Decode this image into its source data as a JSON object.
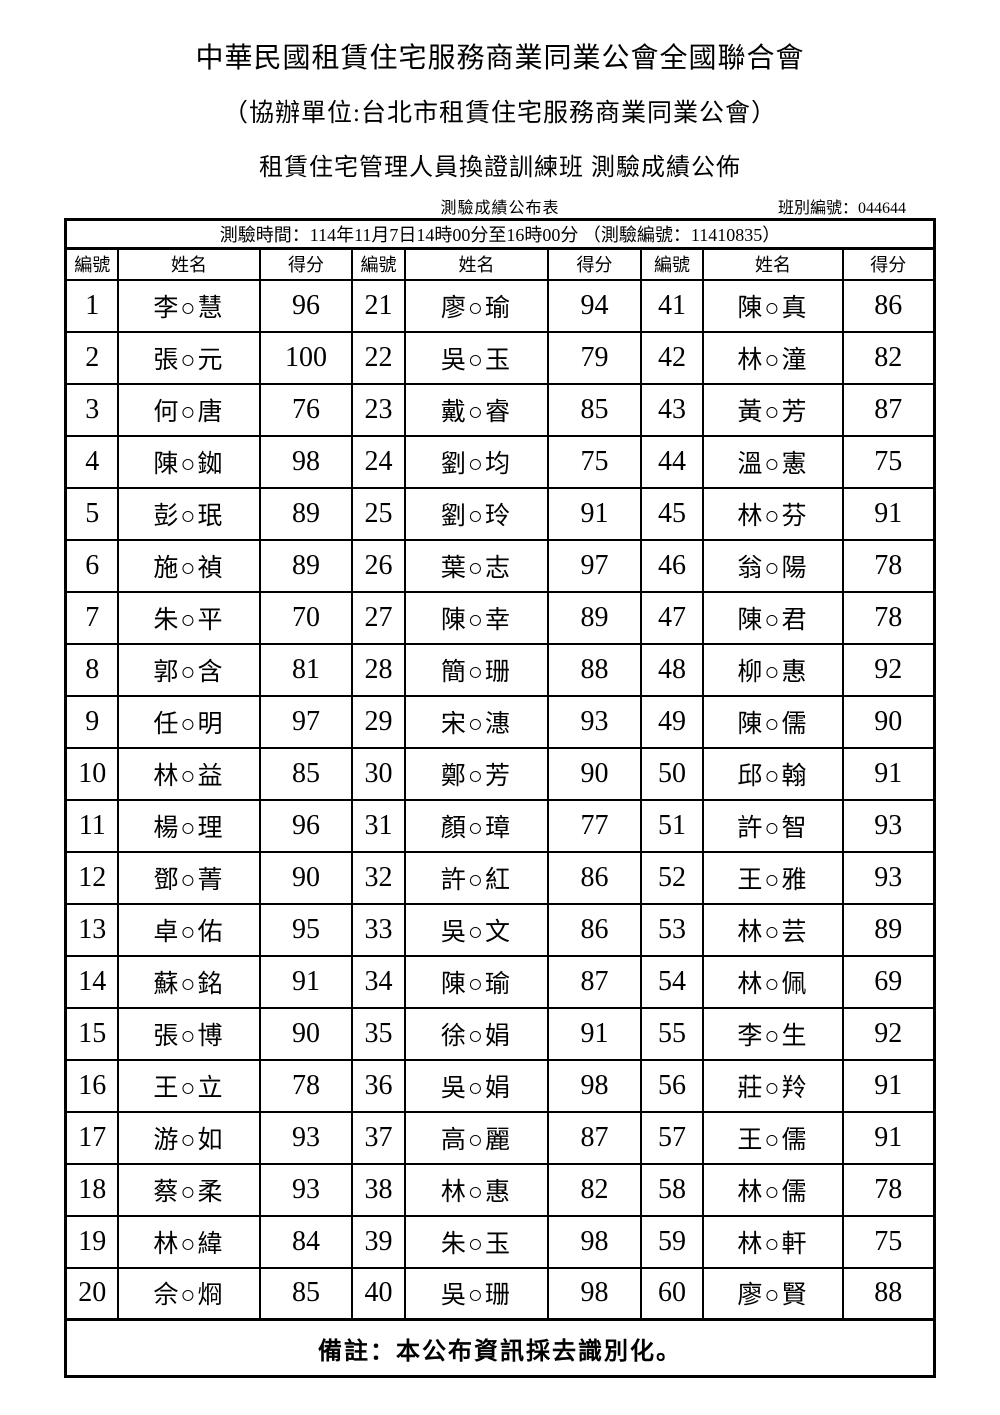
{
  "colors": {
    "background": "#ffffff",
    "text": "#000000",
    "border": "#000000"
  },
  "header": {
    "title1": "中華民國租賃住宅服務商業同業公會全國聯合會",
    "title2": "（協辦單位:台北市租賃住宅服務商業同業公會）",
    "title3": "租賃住宅管理人員換證訓練班 測驗成績公佈",
    "table_caption": "測驗成績公布表",
    "class_number": "班別編號：044644"
  },
  "table": {
    "time_row": "測驗時間：114年11月7日14時00分至16時00分 （測驗編號：11410835）",
    "column_headers": [
      "編號",
      "姓名",
      "得分"
    ],
    "entries": [
      {
        "no": "1",
        "name": "李○慧",
        "score": "96"
      },
      {
        "no": "2",
        "name": "張○元",
        "score": "100"
      },
      {
        "no": "3",
        "name": "何○唐",
        "score": "76"
      },
      {
        "no": "4",
        "name": "陳○銣",
        "score": "98"
      },
      {
        "no": "5",
        "name": "彭○珉",
        "score": "89"
      },
      {
        "no": "6",
        "name": "施○禎",
        "score": "89"
      },
      {
        "no": "7",
        "name": "朱○平",
        "score": "70"
      },
      {
        "no": "8",
        "name": "郭○含",
        "score": "81"
      },
      {
        "no": "9",
        "name": "任○明",
        "score": "97"
      },
      {
        "no": "10",
        "name": "林○益",
        "score": "85"
      },
      {
        "no": "11",
        "name": "楊○理",
        "score": "96"
      },
      {
        "no": "12",
        "name": "鄧○菁",
        "score": "90"
      },
      {
        "no": "13",
        "name": "卓○佑",
        "score": "95"
      },
      {
        "no": "14",
        "name": "蘇○銘",
        "score": "91"
      },
      {
        "no": "15",
        "name": "張○博",
        "score": "90"
      },
      {
        "no": "16",
        "name": "王○立",
        "score": "78"
      },
      {
        "no": "17",
        "name": "游○如",
        "score": "93"
      },
      {
        "no": "18",
        "name": "蔡○柔",
        "score": "93"
      },
      {
        "no": "19",
        "name": "林○緯",
        "score": "84"
      },
      {
        "no": "20",
        "name": "佘○烱",
        "score": "85"
      },
      {
        "no": "21",
        "name": "廖○瑜",
        "score": "94"
      },
      {
        "no": "22",
        "name": "吳○玉",
        "score": "79"
      },
      {
        "no": "23",
        "name": "戴○睿",
        "score": "85"
      },
      {
        "no": "24",
        "name": "劉○均",
        "score": "75"
      },
      {
        "no": "25",
        "name": "劉○玲",
        "score": "91"
      },
      {
        "no": "26",
        "name": "葉○志",
        "score": "97"
      },
      {
        "no": "27",
        "name": "陳○幸",
        "score": "89"
      },
      {
        "no": "28",
        "name": "簡○珊",
        "score": "88"
      },
      {
        "no": "29",
        "name": "宋○潓",
        "score": "93"
      },
      {
        "no": "30",
        "name": "鄭○芳",
        "score": "90"
      },
      {
        "no": "31",
        "name": "顏○璋",
        "score": "77"
      },
      {
        "no": "32",
        "name": "許○紅",
        "score": "86"
      },
      {
        "no": "33",
        "name": "吳○文",
        "score": "86"
      },
      {
        "no": "34",
        "name": "陳○瑜",
        "score": "87"
      },
      {
        "no": "35",
        "name": "徐○娟",
        "score": "91"
      },
      {
        "no": "36",
        "name": "吳○娟",
        "score": "98"
      },
      {
        "no": "37",
        "name": "高○麗",
        "score": "87"
      },
      {
        "no": "38",
        "name": "林○惠",
        "score": "82"
      },
      {
        "no": "39",
        "name": "朱○玉",
        "score": "98"
      },
      {
        "no": "40",
        "name": "吳○珊",
        "score": "98"
      },
      {
        "no": "41",
        "name": "陳○真",
        "score": "86"
      },
      {
        "no": "42",
        "name": "林○潼",
        "score": "82"
      },
      {
        "no": "43",
        "name": "黃○芳",
        "score": "87"
      },
      {
        "no": "44",
        "name": "溫○憲",
        "score": "75"
      },
      {
        "no": "45",
        "name": "林○芬",
        "score": "91"
      },
      {
        "no": "46",
        "name": "翁○陽",
        "score": "78"
      },
      {
        "no": "47",
        "name": "陳○君",
        "score": "78"
      },
      {
        "no": "48",
        "name": "柳○惠",
        "score": "92"
      },
      {
        "no": "49",
        "name": "陳○儒",
        "score": "90"
      },
      {
        "no": "50",
        "name": "邱○翰",
        "score": "91"
      },
      {
        "no": "51",
        "name": "許○智",
        "score": "93"
      },
      {
        "no": "52",
        "name": "王○雅",
        "score": "93"
      },
      {
        "no": "53",
        "name": "林○芸",
        "score": "89"
      },
      {
        "no": "54",
        "name": "林○佩",
        "score": "69"
      },
      {
        "no": "55",
        "name": "李○生",
        "score": "92"
      },
      {
        "no": "56",
        "name": "莊○羚",
        "score": "91"
      },
      {
        "no": "57",
        "name": "王○儒",
        "score": "91"
      },
      {
        "no": "58",
        "name": "林○儒",
        "score": "78"
      },
      {
        "no": "59",
        "name": "林○軒",
        "score": "75"
      },
      {
        "no": "60",
        "name": "廖○賢",
        "score": "88"
      }
    ],
    "footer_note": "備註：本公布資訊採去識別化。"
  }
}
